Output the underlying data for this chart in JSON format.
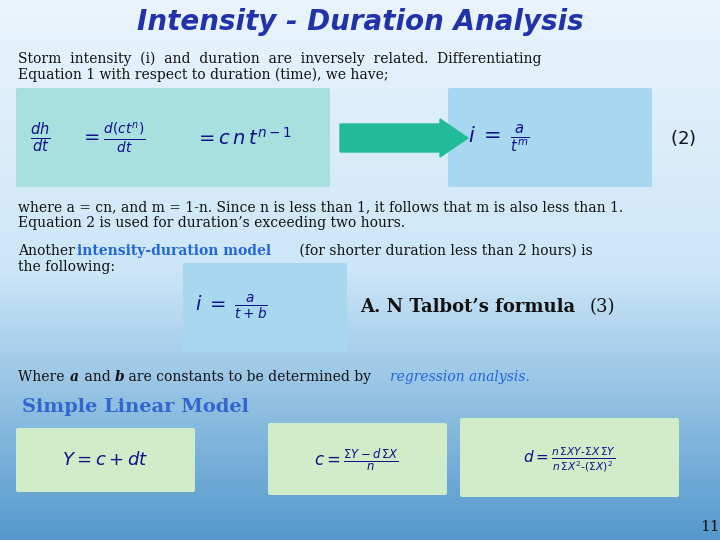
{
  "title": "Intensity - Duration Analysis",
  "title_color": "#2233aa",
  "title_fontsize": 20,
  "bg_top": "#ddeeff",
  "bg_bottom": "#88bbee",
  "text1_line1": "Storm  intensity  (i)  and  duration  are  inversely  related.  Differentiating",
  "text1_line2": "Equation 1 with respect to duration (time), we have;",
  "text1_fontsize": 10.5,
  "box1_color": "#a8e0e0",
  "box2_color": "#a8d8f0",
  "arrow_color": "#22bb99",
  "text2_line1": "where a = cn, and m = 1-n. Since n is less than 1, it follows that m is also less than 1.",
  "text2_line2": "Equation 2 is used for duration’s exceeding two hours.",
  "text3_colored": "intensity-duration model",
  "talbot_color": "#4488cc",
  "slm_color": "#3366cc",
  "green_box": "#d0ecc8",
  "dark_blue": "#111188",
  "page_num": "11"
}
